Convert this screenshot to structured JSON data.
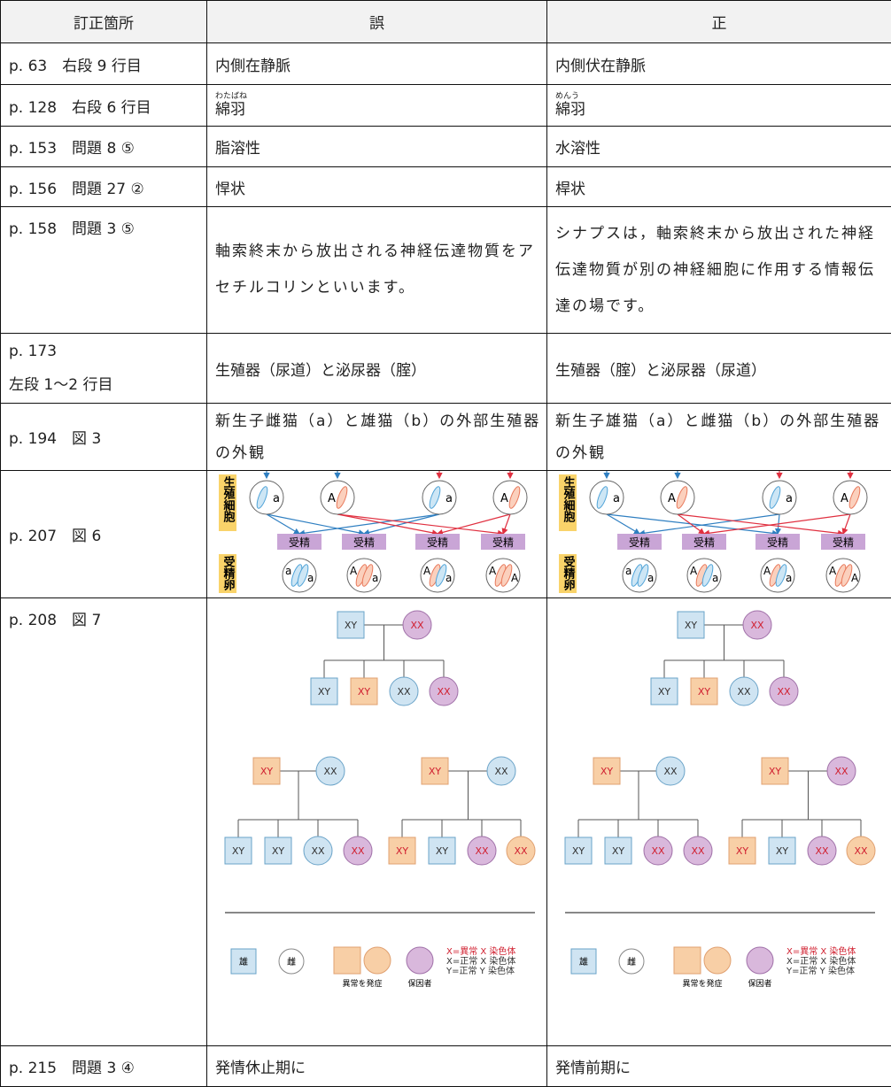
{
  "table": {
    "header": [
      "訂正箇所",
      "誤",
      "正"
    ],
    "rows": [
      {
        "location": "p. 63　右段 9 行目",
        "wrong": "内側在静脈",
        "right": "内側伏在静脈"
      },
      {
        "location": "p. 128　右段 6 行目",
        "wrong": {
          "text": "綿羽",
          "ruby": "わたばね"
        },
        "right": {
          "text": "綿羽",
          "ruby": "めんう"
        }
      },
      {
        "location": "p. 153　問題 8 ⑤",
        "wrong": "脂溶性",
        "right": "水溶性"
      },
      {
        "location": "p. 156　問題 27 ②",
        "wrong": "悍状",
        "right": "桿状"
      },
      {
        "location": "p. 158　問題 3 ⑤",
        "wrong": "軸索終末から放出される神経伝達物質をアセチルコリンといいます。",
        "right": "シナプスは，軸索終末から放出された神経伝達物質が別の神経細胞に作用する情報伝達の場です。"
      },
      {
        "location": [
          "p. 173",
          "左段 1〜2 行目"
        ],
        "wrong": "生殖器（尿道）と泌尿器（腟）",
        "right": "生殖器（腟）と泌尿器（尿道）"
      },
      {
        "location": "p. 194　図 3",
        "wrong": "新生子雌猫（a）と雄猫（b）の外部生殖器の外観",
        "right": "新生子雄猫（a）と雌猫（b）の外部生殖器の外観"
      },
      {
        "location": "p. 207　図 6",
        "wrong": {
          "side_top": "生殖細胞",
          "gametes": [
            "a",
            "A",
            "a",
            "A"
          ],
          "fertilization": [
            "受精",
            "受精",
            "受精",
            "受精"
          ],
          "side_bottom": "受精卵",
          "zygotes": [
            [
              "a",
              "a"
            ],
            [
              "A",
              "a"
            ],
            [
              "A",
              "a"
            ],
            [
              "A",
              "A"
            ]
          ]
        },
        "right": {
          "side_top": "生殖細胞",
          "gametes": [
            "a",
            "A",
            "a",
            "A"
          ],
          "fertilization": [
            "受精",
            "受精",
            "受精",
            "受精"
          ],
          "side_bottom": "受精卵",
          "zygotes": [
            [
              "a",
              "a"
            ],
            [
              "A",
              "a"
            ],
            [
              "A",
              "a"
            ],
            [
              "A",
              "A"
            ]
          ]
        }
      },
      {
        "location": "p. 208　図 7",
        "wrong": {
          "nodes": [
            "XY",
            "XX",
            "XY",
            "XY",
            "XX",
            "XX",
            "XY",
            "XX",
            "XY",
            "XY",
            "XX",
            "XX",
            "XY",
            "XX",
            "XY",
            "XY",
            "XX",
            "XX"
          ],
          "legend": {
            "male": "雄",
            "female": "雌",
            "affected": "異常を発症",
            "carrier": "保因者",
            "notes": [
              "X=異常 X 染色体",
              "X=正常 X 染色体",
              "Y=正常 Y 染色体"
            ]
          }
        },
        "right": {
          "nodes": [
            "XY",
            "XX",
            "XY",
            "XY",
            "XX",
            "XX",
            "XY",
            "XX",
            "XY",
            "XY",
            "XX",
            "XX",
            "XY",
            "XX",
            "XY",
            "XY",
            "XX",
            "XX"
          ],
          "legend": {
            "male": "雄",
            "female": "雌",
            "affected": "異常を発症",
            "carrier": "保因者",
            "notes": [
              "X=異常 X 染色体",
              "X=正常 X 染色体",
              "Y=正常 Y 染色体"
            ]
          }
        }
      },
      {
        "location": "p. 215　問題 3 ④",
        "wrong": "発情休止期に",
        "right": "発情前期に"
      }
    ]
  }
}
